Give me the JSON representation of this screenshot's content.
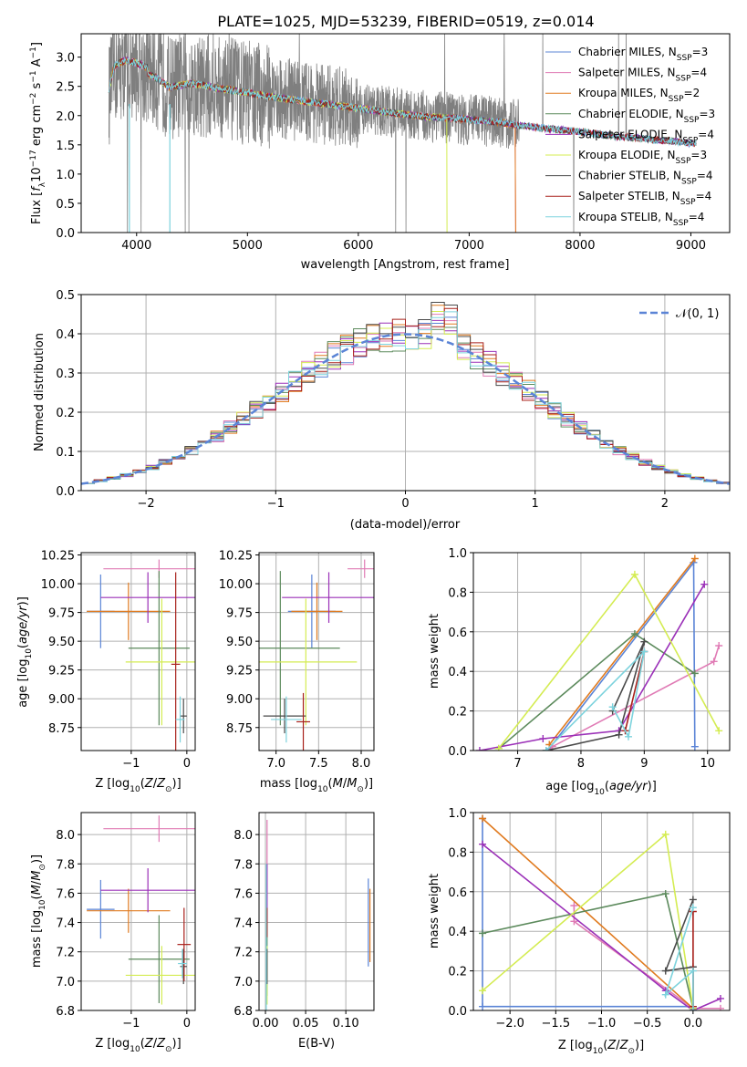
{
  "figure_title": "PLATE=1025, MJD=53239, FIBERID=0519, z=0.014",
  "colors": {
    "series": [
      "#5b84d6",
      "#e07bb5",
      "#e07b20",
      "#5c8a5c",
      "#9b30b8",
      "#d4ec52",
      "#4a4a4a",
      "#a8201a",
      "#7dd3dd"
    ],
    "spectrum": "#7f7f7f",
    "normal_curve": "#5b84d6",
    "grid": "#b0b0b0"
  },
  "chart_data": [
    {
      "id": "spectrum",
      "type": "line",
      "title": "PLATE=1025, MJD=53239, FIBERID=0519, z=0.014",
      "xlabel": "wavelength [Angstrom, rest frame]",
      "ylabel": "Flux [f_λ 10^-17 erg cm^-2 s^-1 A^-1]",
      "xlim": [
        3500,
        9350
      ],
      "ylim": [
        0,
        3.4
      ],
      "xticks": [
        4000,
        5000,
        6000,
        7000,
        8000,
        9000
      ],
      "yticks": [
        0.0,
        0.5,
        1.0,
        1.5,
        2.0,
        2.5,
        3.0
      ],
      "grid": false,
      "legend_position": "top-right",
      "legend": [
        "Chabrier MILES, N_SSP=3",
        "Salpeter MILES, N_SSP=4",
        "Kroupa MILES, N_SSP=2",
        "Chabrier ELODIE, N_SSP=3",
        "Salpeter ELODIE, N_SSP=4",
        "Kroupa ELODIE, N_SSP=3",
        "Chabrier STELIB, N_SSP=4",
        "Salpeter STELIB, N_SSP=4",
        "Kroupa STELIB, N_SSP=4"
      ],
      "data_continuum": {
        "x": [
          3750,
          3800,
          3900,
          4000,
          4100,
          4200,
          4300,
          4400,
          4500,
          4700,
          4900,
          5100,
          5300,
          5500,
          5700,
          5900,
          6100,
          6300,
          6500,
          6700,
          6900,
          7100,
          7300,
          7500,
          7700,
          7900,
          8100,
          8300,
          8500,
          8700,
          8900,
          9050
        ],
        "y": [
          2.35,
          2.75,
          2.85,
          2.8,
          2.72,
          2.62,
          2.48,
          2.52,
          2.55,
          2.48,
          2.42,
          2.36,
          2.3,
          2.25,
          2.2,
          2.15,
          2.1,
          2.05,
          2.0,
          1.97,
          1.95,
          1.92,
          1.88,
          1.82,
          1.78,
          1.74,
          1.7,
          1.65,
          1.62,
          1.58,
          1.55,
          1.52
        ]
      },
      "model_cutoffs": {
        "series": [
          "Kroupa ELODIE, N_SSP=3",
          "Salpeter MILES, N_SSP=4",
          "Kroupa MILES, N_SSP=2"
        ],
        "wavelength": [
          6800,
          7420,
          7420
        ]
      },
      "model_range": [
        3750,
        9050
      ]
    },
    {
      "id": "residuals",
      "type": "histogram",
      "xlabel": "(data-model)/error",
      "ylabel": "Normed distribution",
      "xlim": [
        -2.5,
        2.5
      ],
      "ylim": [
        0,
        0.5
      ],
      "xticks": [
        -2,
        -1,
        0,
        1,
        2
      ],
      "yticks": [
        0.0,
        0.1,
        0.2,
        0.3,
        0.4,
        0.5
      ],
      "grid": true,
      "legend_position": "top-right",
      "legend": [
        "𝒩(0, 1)"
      ],
      "bin_width": 0.1,
      "normal_curve": {
        "mean": 0,
        "sigma": 1
      }
    },
    {
      "id": "age_vs_Z",
      "type": "errorbar",
      "xlabel": "Z [log10(Z/Z⊙)]",
      "ylabel": "age [log10(age/yr)]",
      "xlim": [
        -1.9,
        0.15
      ],
      "ylim": [
        8.55,
        10.27
      ],
      "xticks": [
        -1,
        0
      ],
      "yticks": [
        8.75,
        9.0,
        9.25,
        9.5,
        9.75,
        10.0,
        10.25
      ],
      "grid": true,
      "points": [
        {
          "x": -1.55,
          "xerr": 0.25,
          "y": 9.76,
          "yerr": 0.32
        },
        {
          "x": -0.5,
          "xerr": 1.0,
          "y": 10.13,
          "yerr": 0.08
        },
        {
          "x": -1.05,
          "xerr": 0.75,
          "y": 9.76,
          "yerr": 0.25
        },
        {
          "x": -0.5,
          "xerr": 0.55,
          "y": 9.44,
          "yerr": 0.67
        },
        {
          "x": -0.7,
          "xerr": 0.85,
          "y": 9.88,
          "yerr": 0.22
        },
        {
          "x": -0.45,
          "xerr": 0.65,
          "y": 9.32,
          "yerr": 0.55
        },
        {
          "x": -0.06,
          "xerr": 0.06,
          "y": 8.85,
          "yerr": 0.15
        },
        {
          "x": -0.2,
          "xerr": 0.08,
          "y": 9.3,
          "yerr": 0.8
        },
        {
          "x": -0.12,
          "xerr": 0.08,
          "y": 8.82,
          "yerr": 0.2
        }
      ]
    },
    {
      "id": "age_vs_mass",
      "type": "errorbar",
      "xlabel": "mass [log10(M/M⊙)]",
      "ylabel": "",
      "xlim": [
        6.8,
        8.15
      ],
      "ylim": [
        8.55,
        10.27
      ],
      "xticks": [
        7.0,
        7.5,
        8.0
      ],
      "yticks": [
        8.75,
        9.0,
        9.25,
        9.5,
        9.75,
        10.0,
        10.25
      ],
      "grid": true,
      "points": [
        {
          "x": 7.42,
          "xerr": 0.28,
          "y": 9.76,
          "yerr": 0.32
        },
        {
          "x": 8.04,
          "xerr": 0.2,
          "y": 10.13,
          "yerr": 0.08
        },
        {
          "x": 7.48,
          "xerr": 0.3,
          "y": 9.76,
          "yerr": 0.25
        },
        {
          "x": 7.05,
          "xerr": 0.7,
          "y": 9.44,
          "yerr": 0.67
        },
        {
          "x": 7.62,
          "xerr": 0.55,
          "y": 9.88,
          "yerr": 0.22
        },
        {
          "x": 7.35,
          "xerr": 0.6,
          "y": 9.32,
          "yerr": 0.55
        },
        {
          "x": 7.1,
          "xerr": 0.25,
          "y": 8.85,
          "yerr": 0.15
        },
        {
          "x": 7.32,
          "xerr": 0.08,
          "y": 8.8,
          "yerr": 0.25
        },
        {
          "x": 7.12,
          "xerr": 0.18,
          "y": 8.82,
          "yerr": 0.2
        }
      ]
    },
    {
      "id": "weight_vs_age",
      "type": "line",
      "xlabel": "age [log10(age/yr)]",
      "ylabel": "mass weight",
      "xlim": [
        6.3,
        10.35
      ],
      "ylim": [
        0,
        1.0
      ],
      "xticks": [
        7,
        8,
        9,
        10
      ],
      "yticks": [
        0.0,
        0.2,
        0.4,
        0.6,
        0.8,
        1.0
      ],
      "grid": true,
      "series": [
        {
          "x": [
            9.8,
            9.78,
            7.5
          ],
          "y": [
            0.02,
            0.95,
            0.01
          ]
        },
        {
          "x": [
            10.18,
            10.1,
            7.55,
            7.5
          ],
          "y": [
            0.53,
            0.45,
            0.02,
            0.0
          ]
        },
        {
          "x": [
            9.8,
            7.5
          ],
          "y": [
            0.97,
            0.03
          ]
        },
        {
          "x": [
            9.8,
            8.85,
            6.7
          ],
          "y": [
            0.39,
            0.59,
            0.01
          ]
        },
        {
          "x": [
            9.95,
            8.6,
            7.4,
            6.4
          ],
          "y": [
            0.84,
            0.1,
            0.06,
            0.0
          ]
        },
        {
          "x": [
            10.18,
            8.85,
            6.7
          ],
          "y": [
            0.1,
            0.89,
            0.01
          ]
        },
        {
          "x": [
            8.5,
            9.0,
            8.6,
            7.45
          ],
          "y": [
            0.2,
            0.55,
            0.08,
            0.0
          ]
        },
        {
          "x": [
            9.0,
            8.7
          ],
          "y": [
            0.5,
            0.1
          ]
        },
        {
          "x": [
            8.5,
            8.75,
            9.0,
            7.45
          ],
          "y": [
            0.22,
            0.07,
            0.5,
            0.0
          ]
        }
      ]
    },
    {
      "id": "mass_vs_Z",
      "type": "errorbar",
      "xlabel": "Z [log10(Z/Z⊙)]",
      "ylabel": "mass [log10(M/M⊙)]",
      "xlim": [
        -1.9,
        0.15
      ],
      "ylim": [
        6.8,
        8.15
      ],
      "xticks": [
        -1,
        0
      ],
      "yticks": [
        6.8,
        7.0,
        7.2,
        7.4,
        7.6,
        7.8,
        8.0
      ],
      "grid": true,
      "points": [
        {
          "x": -1.55,
          "xerr": 0.25,
          "y": 7.49,
          "yerr": 0.2
        },
        {
          "x": -0.5,
          "xerr": 1.0,
          "y": 8.04,
          "yerr": 0.09
        },
        {
          "x": -1.05,
          "xerr": 0.75,
          "y": 7.48,
          "yerr": 0.15
        },
        {
          "x": -0.5,
          "xerr": 0.55,
          "y": 7.15,
          "yerr": 0.3
        },
        {
          "x": -0.7,
          "xerr": 0.85,
          "y": 7.62,
          "yerr": 0.15
        },
        {
          "x": -0.45,
          "xerr": 0.65,
          "y": 7.04,
          "yerr": 0.2
        },
        {
          "x": -0.06,
          "xerr": 0.06,
          "y": 7.1,
          "yerr": 0.12
        },
        {
          "x": -0.05,
          "xerr": 0.12,
          "y": 7.25,
          "yerr": 0.25
        },
        {
          "x": -0.08,
          "xerr": 0.08,
          "y": 7.12,
          "yerr": 0.1
        }
      ]
    },
    {
      "id": "mass_vs_ebv",
      "type": "errorbar",
      "xlabel": "E(B-V)",
      "ylabel": "",
      "xlim": [
        -0.008,
        0.135
      ],
      "ylim": [
        6.8,
        8.15
      ],
      "xticks": [
        0.0,
        0.05,
        0.1
      ],
      "yticks": [
        6.8,
        7.0,
        7.2,
        7.4,
        7.6,
        7.8,
        8.0
      ],
      "grid": true,
      "points": [
        {
          "x": 0.128,
          "xerr": 0,
          "y": 7.4,
          "yerr": 0.3
        },
        {
          "x": 0.002,
          "xerr": 0,
          "y": 7.7,
          "yerr": 0.4
        },
        {
          "x": 0.13,
          "xerr": 0,
          "y": 7.38,
          "yerr": 0.25
        },
        {
          "x": 0.002,
          "xerr": 0,
          "y": 7.15,
          "yerr": 0.25
        },
        {
          "x": 0.002,
          "xerr": 0,
          "y": 7.6,
          "yerr": 0.2
        },
        {
          "x": 0.002,
          "xerr": 0,
          "y": 7.04,
          "yerr": 0.2
        },
        {
          "x": 0.002,
          "xerr": 0,
          "y": 7.1,
          "yerr": 0.12
        },
        {
          "x": 0.002,
          "xerr": 0,
          "y": 7.4,
          "yerr": 0.1
        },
        {
          "x": 0.001,
          "xerr": 0,
          "y": 7.3,
          "yerr": 0.5
        }
      ]
    },
    {
      "id": "weight_vs_Z",
      "type": "line",
      "xlabel": "Z [log10(Z/Z⊙)]",
      "ylabel": "mass weight",
      "xlim": [
        -2.4,
        0.4
      ],
      "ylim": [
        0,
        1.0
      ],
      "xticks": [
        -2.0,
        -1.5,
        -1.0,
        -0.5,
        0.0
      ],
      "yticks": [
        0.0,
        0.2,
        0.4,
        0.6,
        0.8,
        1.0
      ],
      "grid": true,
      "series": [
        {
          "x": [
            -2.3,
            -2.3,
            0.0
          ],
          "y": [
            0.97,
            0.02,
            0.02
          ]
        },
        {
          "x": [
            -1.3,
            -1.3,
            0.0,
            0.3
          ],
          "y": [
            0.53,
            0.45,
            0.01,
            0.01
          ]
        },
        {
          "x": [
            -2.3,
            0.0
          ],
          "y": [
            0.97,
            0.01
          ]
        },
        {
          "x": [
            -2.3,
            -0.3,
            0.0
          ],
          "y": [
            0.39,
            0.59,
            0.01
          ]
        },
        {
          "x": [
            -2.3,
            -0.3,
            0.0,
            0.3
          ],
          "y": [
            0.84,
            0.1,
            0.0,
            0.06
          ]
        },
        {
          "x": [
            -2.3,
            -0.3,
            0.0
          ],
          "y": [
            0.1,
            0.89,
            0.01
          ]
        },
        {
          "x": [
            0.0,
            -0.3,
            0.0,
            0.0
          ],
          "y": [
            0.56,
            0.2,
            0.22,
            0.0
          ]
        },
        {
          "x": [
            0.0,
            0.0
          ],
          "y": [
            0.5,
            0.02
          ]
        },
        {
          "x": [
            0.0,
            -0.3,
            0.0,
            0.0
          ],
          "y": [
            0.52,
            0.08,
            0.2,
            0.0
          ]
        }
      ]
    }
  ]
}
